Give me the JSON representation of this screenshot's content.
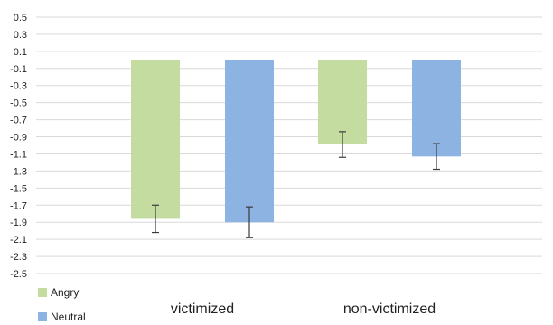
{
  "chart_data": {
    "type": "bar",
    "title": "",
    "xlabel": "",
    "ylabel": "",
    "categories": [
      "victimized",
      "non-victimized"
    ],
    "series": [
      {
        "name": "Angry",
        "color": "#c5dca0",
        "values": [
          -1.86,
          -0.99
        ],
        "error": [
          0.16,
          0.15
        ]
      },
      {
        "name": "Neutral",
        "color": "#8db3e2",
        "values": [
          -1.9,
          -1.13
        ],
        "error": [
          0.18,
          0.15
        ]
      }
    ],
    "ylim": [
      -2.5,
      0.5
    ],
    "yticks": [
      "0.5",
      "0.3",
      "0.1",
      "-0.1",
      "-0.3",
      "-0.5",
      "-0.7",
      "-0.9",
      "-1.1",
      "-1.3",
      "-1.5",
      "-1.7",
      "-1.9",
      "-2.1",
      "-2.3",
      "-2.5"
    ],
    "grid": true,
    "legend_position": "bottom-left"
  }
}
